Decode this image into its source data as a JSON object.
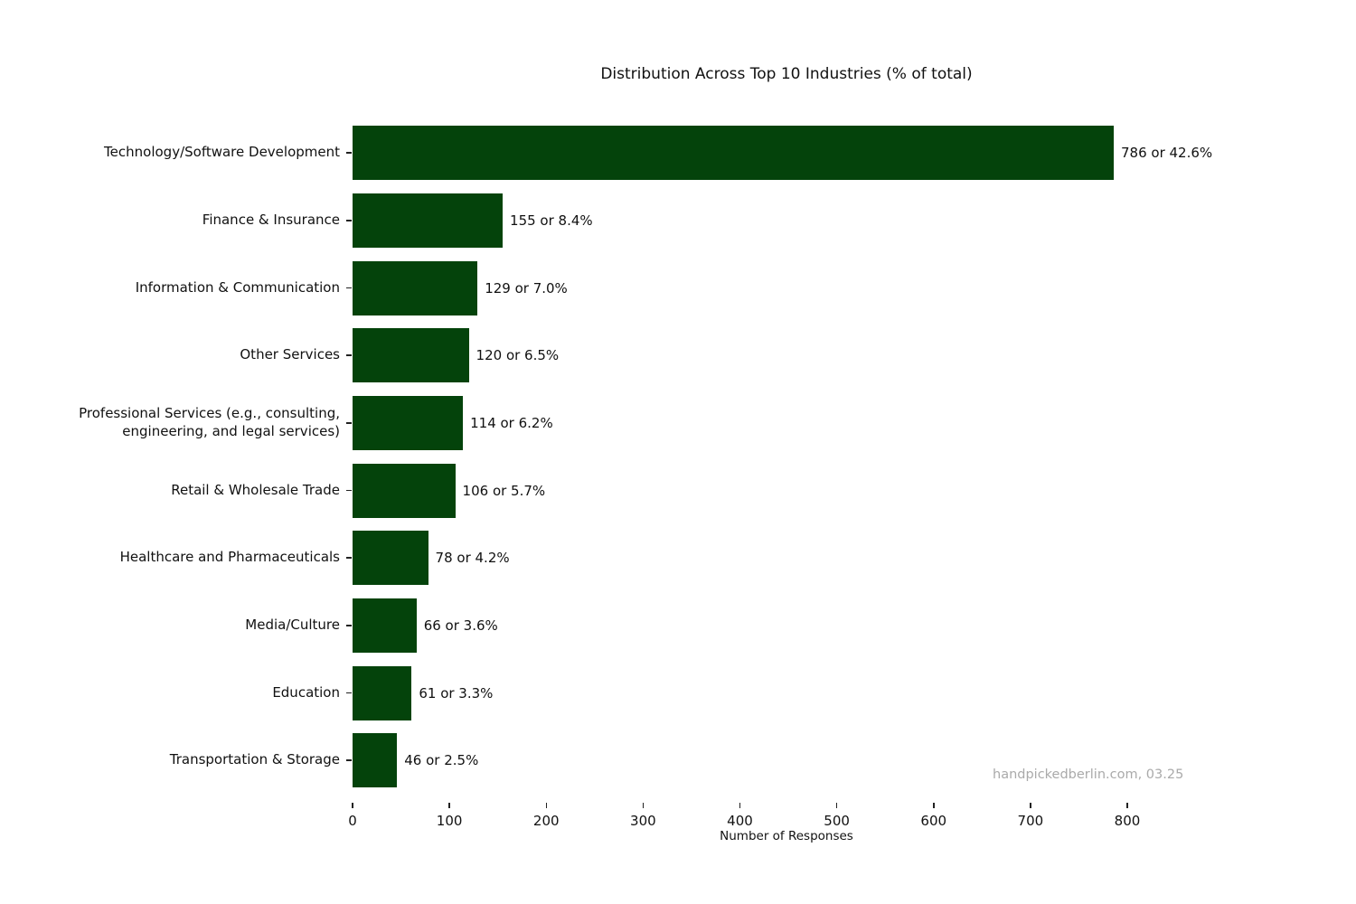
{
  "chart_data": {
    "type": "bar",
    "orientation": "horizontal",
    "title": "Distribution Across Top 10 Industries (% of total)",
    "xlabel": "Number of Responses",
    "categories": [
      "Technology/Software Development",
      "Finance & Insurance",
      "Information & Communication",
      "Other Services",
      "Professional Services (e.g., consulting,\nengineering, and legal services)",
      "Retail & Wholesale Trade",
      "Healthcare and Pharmaceuticals",
      "Media/Culture",
      "Education",
      "Transportation & Storage"
    ],
    "values": [
      786,
      155,
      129,
      120,
      114,
      106,
      78,
      66,
      61,
      46
    ],
    "percentages": [
      42.6,
      8.4,
      7.0,
      6.5,
      6.2,
      5.7,
      4.2,
      3.6,
      3.3,
      2.5
    ],
    "bar_labels": [
      "786 or 42.6%",
      "155 or 8.4%",
      "129 or 7.0%",
      "120 or 6.5%",
      "114 or 6.2%",
      "106 or 5.7%",
      "78 or 4.2%",
      "66 or 3.6%",
      "61 or 3.3%",
      "46 or 2.5%"
    ],
    "xticks": [
      0,
      100,
      200,
      300,
      400,
      500,
      600,
      700,
      800
    ],
    "xlim": [
      0,
      896
    ],
    "grid": false,
    "legend": null,
    "bar_color": "#04430b",
    "text_color": "#111111",
    "watermark_color": "#aaaaaa",
    "background": "#ffffff",
    "watermark": "handpickedberlin.com, 03.25"
  }
}
